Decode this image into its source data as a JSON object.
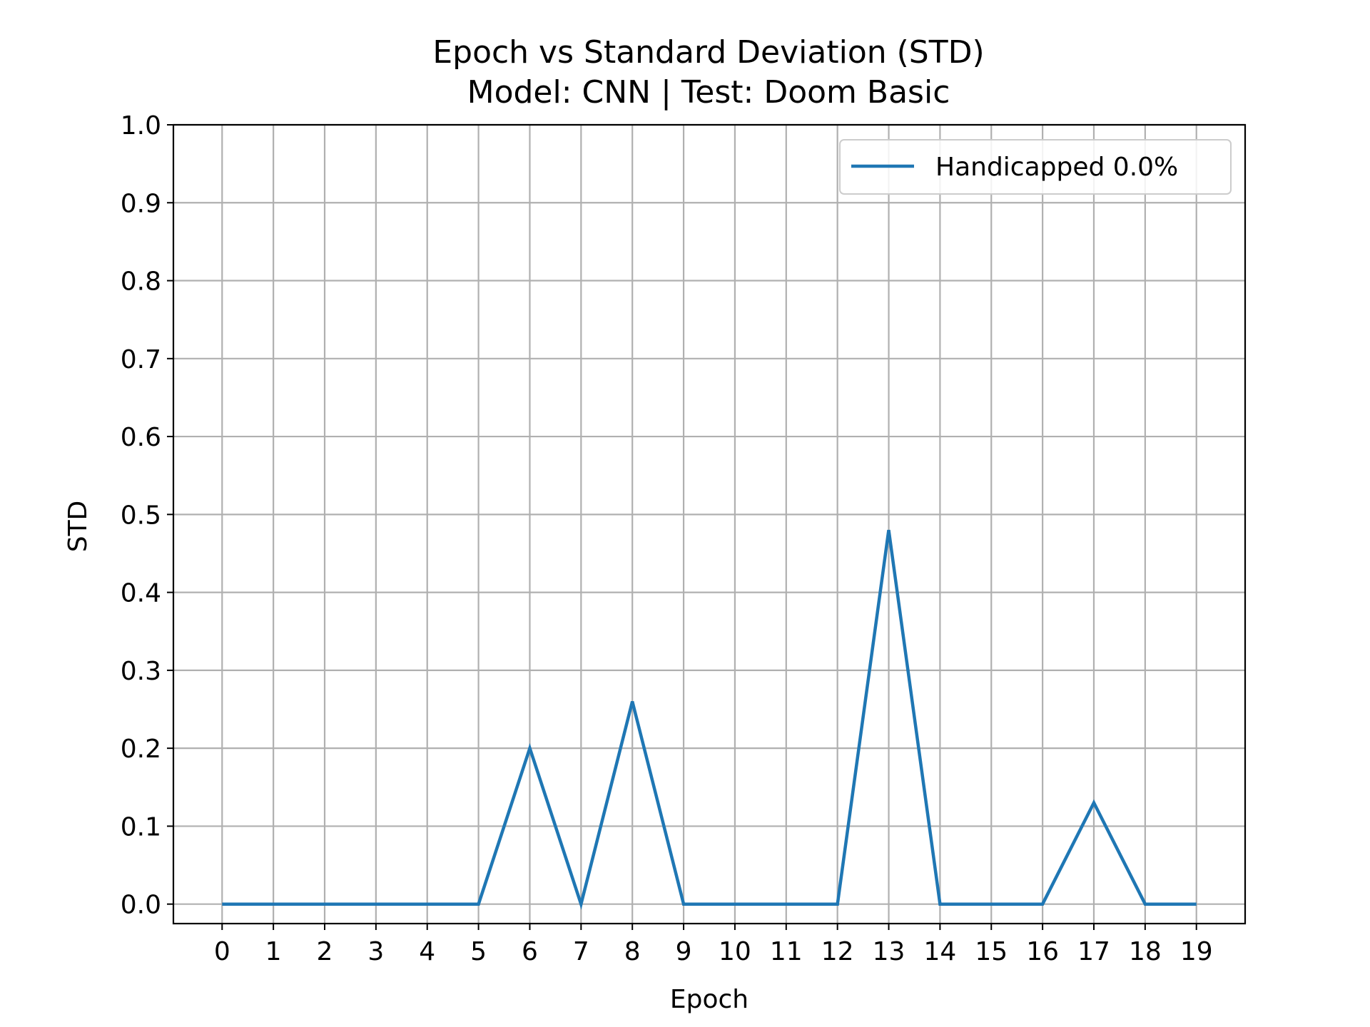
{
  "chart_data": {
    "type": "line",
    "title": "Epoch vs Standard Deviation (STD)",
    "subtitle": "Model: CNN | Test: Doom Basic",
    "xlabel": "Epoch",
    "ylabel": "STD",
    "x": [
      0,
      1,
      2,
      3,
      4,
      5,
      6,
      7,
      8,
      9,
      10,
      11,
      12,
      13,
      14,
      15,
      16,
      17,
      18,
      19
    ],
    "series": [
      {
        "name": "Handicapped 0.0%",
        "color": "#1f77b4",
        "values": [
          0,
          0,
          0,
          0,
          0,
          0,
          0.2,
          0,
          0.26,
          0,
          0,
          0,
          0,
          0.48,
          0,
          0,
          0,
          0.13,
          0,
          0
        ]
      }
    ],
    "xticks": [
      "0",
      "1",
      "2",
      "3",
      "4",
      "5",
      "6",
      "7",
      "8",
      "9",
      "10",
      "11",
      "12",
      "13",
      "14",
      "15",
      "16",
      "17",
      "18",
      "19"
    ],
    "yticks": [
      "0.0",
      "0.1",
      "0.2",
      "0.3",
      "0.4",
      "0.5",
      "0.6",
      "0.7",
      "0.8",
      "0.9",
      "1.0"
    ],
    "xlim": [
      -0.95,
      19.95
    ],
    "ylim": [
      -0.025,
      1.0
    ],
    "grid": true,
    "legend_position": "top-right"
  }
}
